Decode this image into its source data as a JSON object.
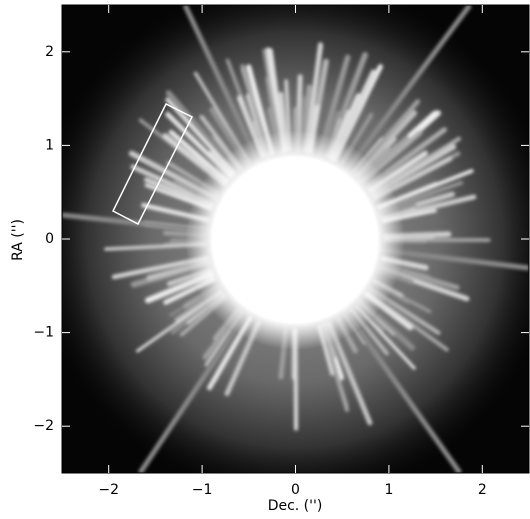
{
  "chart_data": {
    "type": "image",
    "xlabel": "Dec. ('')",
    "ylabel": "RA ('')",
    "xlim": [
      -2.5,
      2.5
    ],
    "ylim": [
      -2.5,
      2.5
    ],
    "xticks": [
      {
        "value": -2,
        "label": "−2"
      },
      {
        "value": -1,
        "label": "−1"
      },
      0,
      1,
      2
    ],
    "yticks": [
      {
        "value": -2,
        "label": "−2"
      },
      {
        "value": -1,
        "label": "−1"
      },
      0,
      1,
      2
    ],
    "grid": false
  }
}
